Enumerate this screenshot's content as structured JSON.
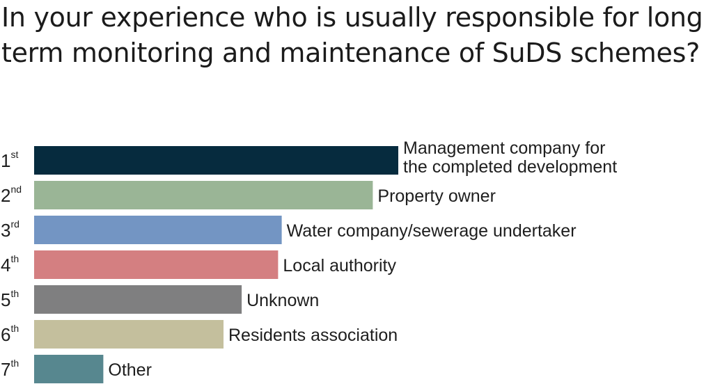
{
  "chart_data": {
    "type": "bar",
    "orientation": "horizontal",
    "title": "In your experience who is usually responsible for long term monitoring and maintenance of SuDS schemes?",
    "categories": [
      {
        "rank": "1",
        "suffix": "st",
        "lines": [
          "Management company for",
          "the completed development"
        ],
        "color": "#062b3e"
      },
      {
        "rank": "2",
        "suffix": "nd",
        "lines": [
          "Property owner"
        ],
        "color": "#9ab596"
      },
      {
        "rank": "3",
        "suffix": "rd",
        "lines": [
          "Water company/sewerage undertaker"
        ],
        "color": "#7395c3"
      },
      {
        "rank": "4",
        "suffix": "th",
        "lines": [
          "Local authority"
        ],
        "color": "#d47f81"
      },
      {
        "rank": "5",
        "suffix": "th",
        "lines": [
          "Unknown"
        ],
        "color": "#7f7f80"
      },
      {
        "rank": "6",
        "suffix": "th",
        "lines": [
          "Residents association"
        ],
        "color": "#c4bf9d"
      },
      {
        "rank": "7",
        "suffix": "th",
        "lines": [
          "Other"
        ],
        "color": "#57878f"
      }
    ],
    "values": [
      100,
      93,
      68,
      67,
      57,
      52,
      19
    ],
    "xlim": [
      0,
      100
    ],
    "axes_visible": false,
    "grid": false,
    "legend": "none"
  }
}
